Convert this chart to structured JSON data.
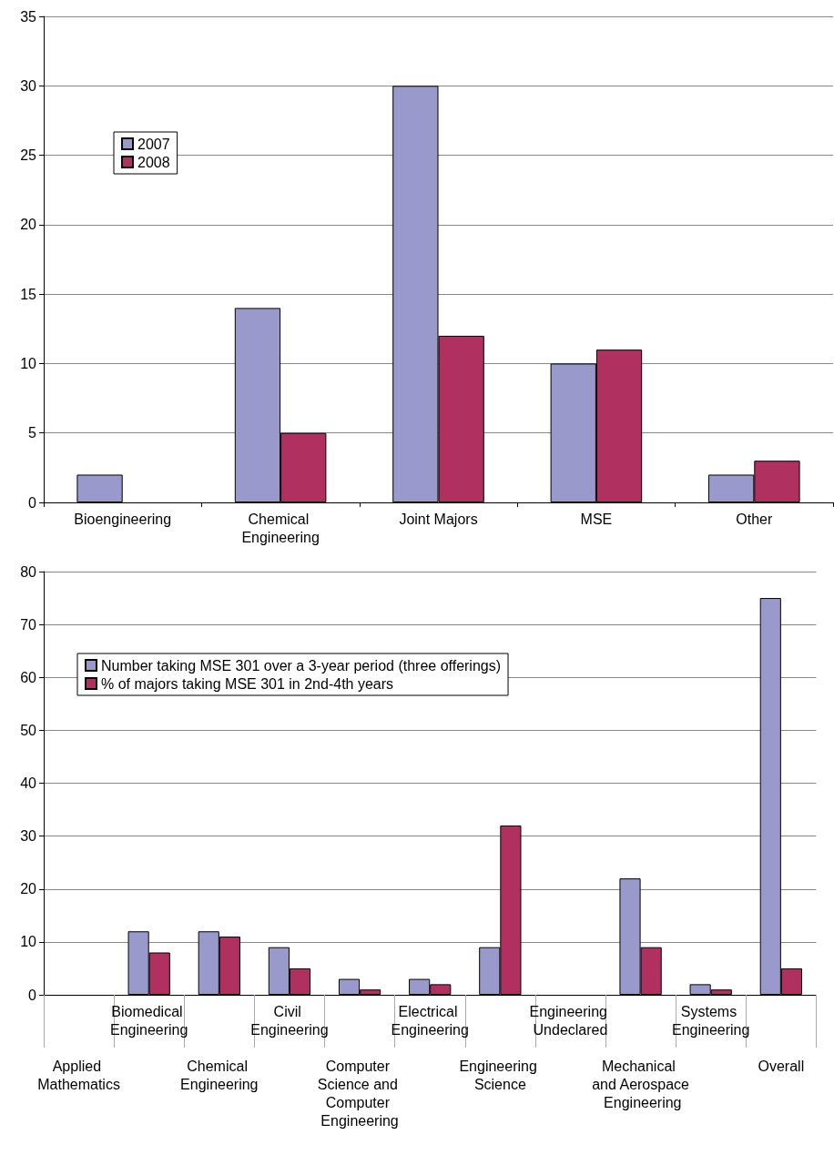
{
  "chart_data": [
    {
      "type": "bar",
      "categories": [
        "Bioengineering",
        "Chemical Engineering",
        "Joint Majors",
        "MSE",
        "Other"
      ],
      "series": [
        {
          "name": "2007",
          "color": "#9999cc",
          "values": [
            2,
            14,
            30,
            10,
            2
          ]
        },
        {
          "name": "2008",
          "color": "#b0305f",
          "values": [
            null,
            5,
            12,
            11,
            3
          ]
        }
      ],
      "ylim": [
        0,
        35
      ],
      "yticks": [
        0,
        5,
        10,
        15,
        20,
        25,
        30,
        35
      ],
      "grid": "y",
      "legend": "top left"
    },
    {
      "type": "bar",
      "categories": [
        "Applied Mathematics",
        "Biomedical Engineering",
        "Chemical Engineering",
        "Civil Engineering",
        "Computer Science and Computer Engineering",
        "Electrical Engineering",
        "Engineering Science",
        "Engineering Undeclared",
        "Mechanical and Aerospace Engineering",
        "Systems Engineering",
        "Overall"
      ],
      "series": [
        {
          "name": "Number taking MSE 301 over a 3-year period (three offerings)",
          "color": "#9999cc",
          "values": [
            null,
            12,
            12,
            9,
            3,
            3,
            9,
            null,
            22,
            2,
            75
          ]
        },
        {
          "name": "% of majors taking MSE 301 in 2nd-4th years",
          "color": "#b0305f",
          "values": [
            null,
            8,
            11,
            5,
            1,
            2,
            32,
            null,
            9,
            1,
            5
          ]
        }
      ],
      "ylim": [
        0,
        80
      ],
      "yticks": [
        0,
        10,
        20,
        30,
        40,
        50,
        60,
        70,
        80
      ],
      "grid": "y",
      "legend": "top left"
    }
  ]
}
